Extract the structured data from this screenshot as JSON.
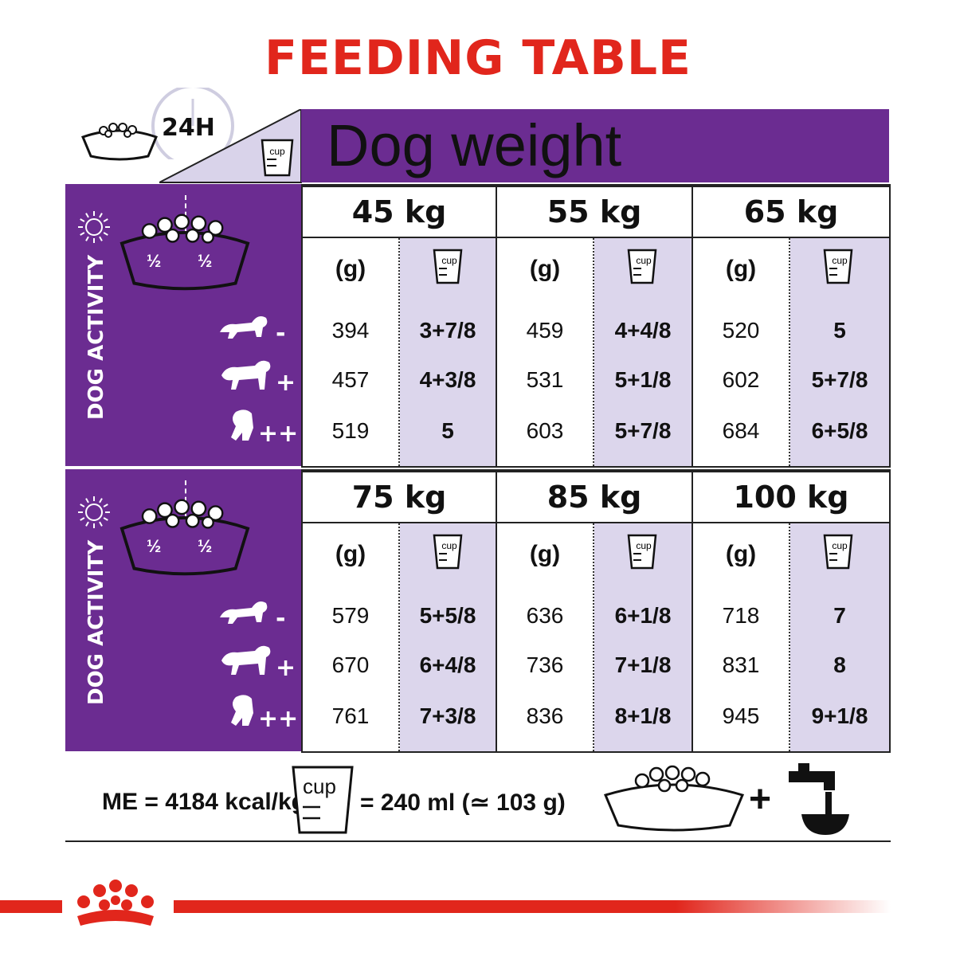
{
  "title": "FEEDING TABLE",
  "colors": {
    "title_red": "#e1261c",
    "purple": "#6b2c91",
    "light_purple": "#dcd6ec",
    "brand_red": "#e1261c"
  },
  "header": {
    "period": "24H",
    "label": "Dog weight"
  },
  "units": {
    "grams": "(g)",
    "cup": "cup"
  },
  "activity_label": "DOG ACTIVITY",
  "activity_levels": [
    "-",
    "+",
    "++"
  ],
  "blocks": [
    {
      "columns": [
        {
          "weight": "45 kg",
          "grams": [
            "394",
            "457",
            "519"
          ],
          "cups": [
            "3+7/8",
            "4+3/8",
            "5"
          ]
        },
        {
          "weight": "55 kg",
          "grams": [
            "459",
            "531",
            "603"
          ],
          "cups": [
            "4+4/8",
            "5+1/8",
            "5+7/8"
          ]
        },
        {
          "weight": "65 kg",
          "grams": [
            "520",
            "602",
            "684"
          ],
          "cups": [
            "5",
            "5+7/8",
            "6+5/8"
          ]
        }
      ]
    },
    {
      "columns": [
        {
          "weight": "75 kg",
          "grams": [
            "579",
            "670",
            "761"
          ],
          "cups": [
            "5+5/8",
            "6+4/8",
            "7+3/8"
          ]
        },
        {
          "weight": "85 kg",
          "grams": [
            "636",
            "736",
            "836"
          ],
          "cups": [
            "6+1/8",
            "7+1/8",
            "8+1/8"
          ]
        },
        {
          "weight": "100 kg",
          "grams": [
            "718",
            "831",
            "945"
          ],
          "cups": [
            "7",
            "8",
            "9+1/8"
          ]
        }
      ]
    }
  ],
  "bowl_fraction": "½",
  "footer": {
    "me": "ME = 4184 kcal/kg",
    "cup_label": "cup",
    "cup_equiv": "= 240 ml (≃ 103 g)",
    "plus": "+"
  },
  "icons": [
    "clock-icon",
    "bowl-icon",
    "cup-icon",
    "sun-icon",
    "moon-icon",
    "dog-icon",
    "water-tap-icon",
    "royal-canin-crown-logo"
  ]
}
